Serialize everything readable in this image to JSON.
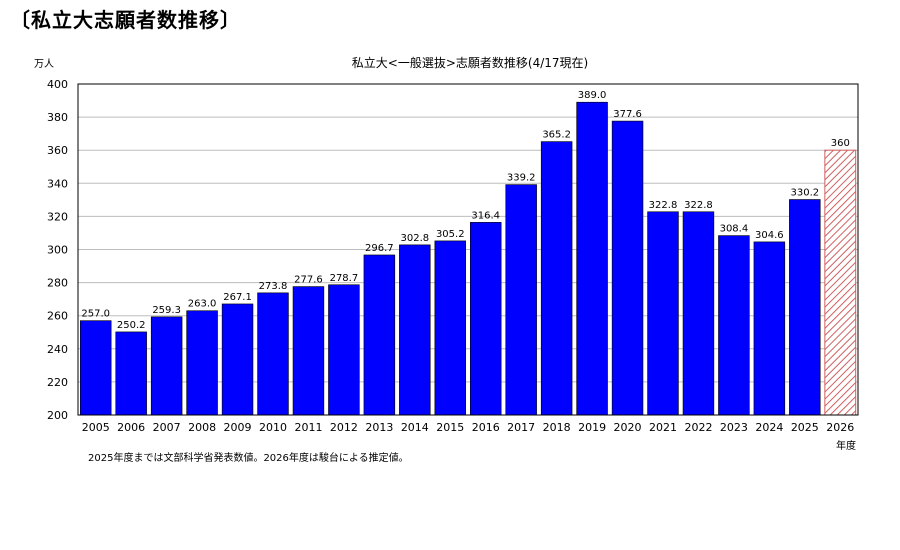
{
  "heading": "〔私立大志願者数推移〕",
  "unit_label": "万人",
  "footnote": "2025年度までは文部科学省発表数値。2026年度は駿台による推定値。",
  "x_unit_label": "年度",
  "colors": {
    "bar": "#0000ff",
    "estimate_hatch": "#d06060",
    "grid": "#bdbdbd"
  },
  "chart_data": {
    "type": "bar",
    "title": "私立大<一般選抜>志願者数推移(4/17現在)",
    "xlabel": "年度",
    "ylabel": "万人",
    "ylim": [
      200,
      400
    ],
    "yticks": [
      200,
      220,
      240,
      260,
      280,
      300,
      320,
      340,
      360,
      380,
      400
    ],
    "grid": true,
    "categories": [
      "2005",
      "2006",
      "2007",
      "2008",
      "2009",
      "2010",
      "2011",
      "2012",
      "2013",
      "2014",
      "2015",
      "2016",
      "2017",
      "2018",
      "2019",
      "2020",
      "2021",
      "2022",
      "2023",
      "2024",
      "2025",
      "2026"
    ],
    "values": [
      257.0,
      250.2,
      259.3,
      263.0,
      267.1,
      273.8,
      277.6,
      278.7,
      296.7,
      302.8,
      305.2,
      316.4,
      339.2,
      365.2,
      389.0,
      377.6,
      322.8,
      322.8,
      308.4,
      304.6,
      330.2,
      360
    ],
    "value_labels": [
      "257.0",
      "250.2",
      "259.3",
      "263.0",
      "267.1",
      "273.8",
      "277.6",
      "278.7",
      "296.7",
      "302.8",
      "305.2",
      "316.4",
      "339.2",
      "365.2",
      "389.0",
      "377.6",
      "322.8",
      "322.8",
      "308.4",
      "304.6",
      "330.2",
      "360"
    ],
    "estimated": [
      false,
      false,
      false,
      false,
      false,
      false,
      false,
      false,
      false,
      false,
      false,
      false,
      false,
      false,
      false,
      false,
      false,
      false,
      false,
      false,
      false,
      true
    ]
  }
}
